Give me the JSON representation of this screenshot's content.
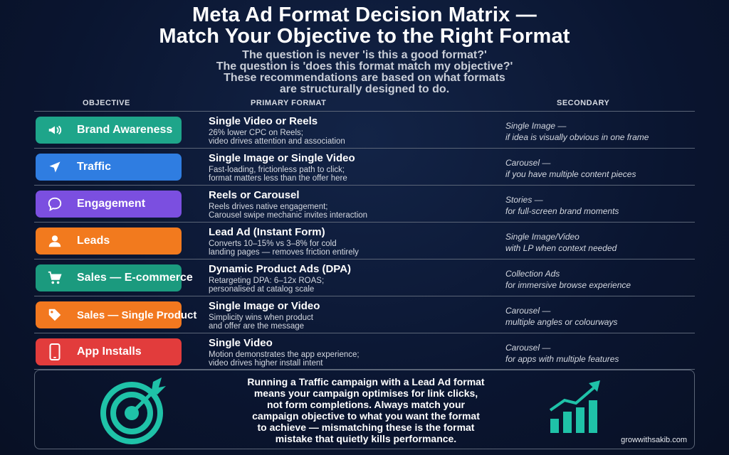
{
  "title_line1": "Meta Ad Format Decision Matrix —",
  "title_line2": "Match Your Objective to the Right Format",
  "subtitle": [
    "The question is never 'is this a good format?'",
    "The question is 'does this format match my objective?'",
    "These recommendations are based on what formats",
    "are structurally designed to do."
  ],
  "columns": {
    "objective": "OBJECTIVE",
    "primary": "PRIMARY FORMAT",
    "secondary": "SECONDARY"
  },
  "rows": [
    {
      "objective": "Brand Awareness",
      "icon": "megaphone-icon",
      "color": "#1ea58a",
      "primary_title": "Single Video or Reels",
      "primary_desc": [
        "26% lower CPC on Reels;",
        "video drives attention and association"
      ],
      "secondary": [
        "Single Image —",
        "if idea is visually obvious in one frame"
      ]
    },
    {
      "objective": "Traffic",
      "icon": "navigation-arrow-icon",
      "color": "#2f7de1",
      "primary_title": "Single Image or Single Video",
      "primary_desc": [
        "Fast-loading, frictionless path to click;",
        "format matters less than the offer here"
      ],
      "secondary": [
        "Carousel —",
        "if you have multiple content pieces"
      ]
    },
    {
      "objective": "Engagement",
      "icon": "chat-bubble-icon",
      "color": "#7b4fe0",
      "primary_title": "Reels or Carousel",
      "primary_desc": [
        "Reels drives native engagement;",
        "Carousel swipe mechanic invites interaction"
      ],
      "secondary": [
        "Stories —",
        "for full-screen brand moments"
      ]
    },
    {
      "objective": "Leads",
      "icon": "user-icon",
      "color": "#f27a1e",
      "primary_title": "Lead Ad (Instant Form)",
      "primary_desc": [
        "Converts 10–15% vs 3–8% for cold",
        "landing pages — removes friction entirely"
      ],
      "secondary": [
        "Single Image/Video",
        "with LP when context needed"
      ]
    },
    {
      "objective": "Sales — E-commerce",
      "icon": "shopping-cart-icon",
      "color": "#1b9a7e",
      "primary_title": "Dynamic Product Ads (DPA)",
      "primary_desc": [
        "Retargeting DPA: 6–12x ROAS;",
        "personalised at catalog scale"
      ],
      "secondary": [
        "Collection Ads",
        "for immersive browse experience"
      ]
    },
    {
      "objective": "Sales — Single Product",
      "icon": "price-tag-icon",
      "color": "#f2781f",
      "primary_title": "Single Image or Video",
      "primary_desc": [
        "Simplicity wins when product",
        "and offer are the message"
      ],
      "secondary": [
        "Carousel —",
        "multiple angles or colourways"
      ]
    },
    {
      "objective": "App Installs",
      "icon": "smartphone-icon",
      "color": "#e23c3c",
      "primary_title": "Single Video",
      "primary_desc": [
        "Motion demonstrates the app experience;",
        "video drives higher install intent"
      ],
      "secondary": [
        "Carousel —",
        "for apps with multiple features"
      ]
    }
  ],
  "note": [
    "Running a Traffic campaign with a Lead Ad format",
    "means your campaign optimises for link clicks,",
    "not form completions. Always match your",
    "campaign objective to what you want the format",
    "to achieve — mismatching these is the format",
    "mistake that quietly kills performance."
  ],
  "credit": "growwithsakib.com",
  "accent_color": "#1fc2a8"
}
